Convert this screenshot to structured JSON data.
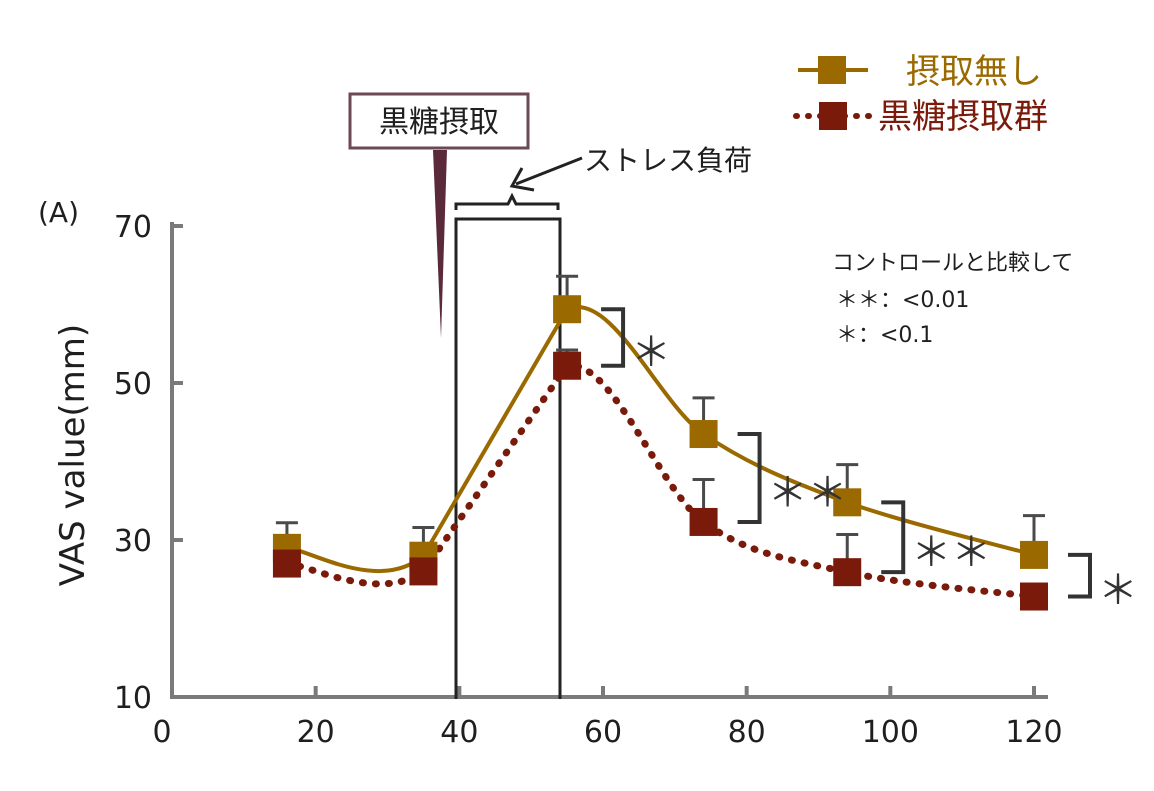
{
  "chart_data": {
    "type": "line",
    "panel_label": "(A)",
    "ylabel": "VAS value(mm)",
    "xlabel": "",
    "xlim": [
      0,
      120
    ],
    "ylim": [
      10,
      70
    ],
    "x_ticks": [
      0,
      20,
      40,
      60,
      80,
      100,
      120
    ],
    "y_ticks": [
      10,
      30,
      50,
      70
    ],
    "grid": false,
    "legend_position": "top-right",
    "series": [
      {
        "name": "摂取無し",
        "color": "#9a6a00",
        "line_style": "solid",
        "marker": "square",
        "x": [
          16,
          35,
          55,
          74,
          94,
          120
        ],
        "y": [
          29,
          28,
          59.4,
          43.5,
          34.8,
          28.1
        ],
        "err": [
          3.2,
          3.6,
          4.2,
          4.6,
          4.8,
          5.0
        ]
      },
      {
        "name": "黒糖摂取群",
        "color": "#7a1a0a",
        "line_style": "dotted",
        "marker": "square",
        "x": [
          16,
          35,
          55,
          74,
          94,
          120
        ],
        "y": [
          27,
          26,
          52.2,
          32.3,
          25.9,
          22.8
        ],
        "err": [
          2.0,
          2.2,
          2.0,
          5.4,
          4.8,
          0
        ]
      }
    ],
    "intake_box_label": "黒糖摂取",
    "stress_label": "ストレス負荷",
    "stress_interval": [
      40,
      54
    ],
    "significance_note": [
      "コントロールと比較して",
      "＊＊：<0.01",
      "＊：<0.1"
    ],
    "significance_marks": [
      {
        "x": 55,
        "label": "＊"
      },
      {
        "x": 74,
        "label": "＊＊"
      },
      {
        "x": 94,
        "label": "＊＊"
      },
      {
        "x": 120,
        "label": "＊"
      }
    ]
  }
}
